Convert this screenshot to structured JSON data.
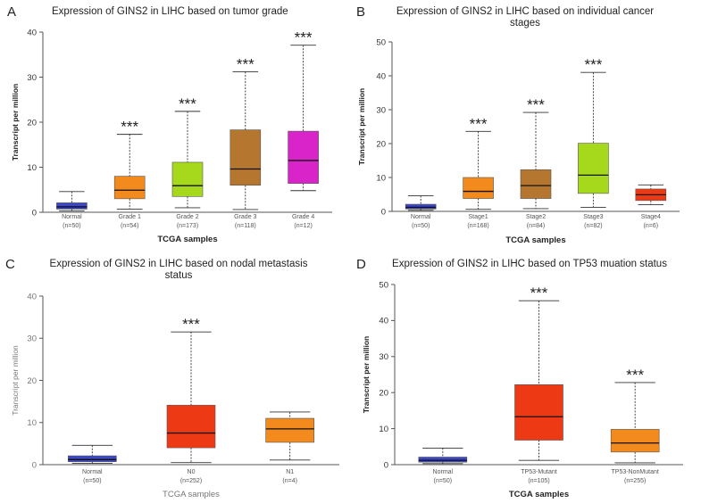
{
  "chart_data": [
    {
      "id": "A",
      "letter": "A",
      "type": "box",
      "title": [
        "Expression of GINS2 in LIHC based on tumor grade"
      ],
      "xlabel": "TCGA samples",
      "ylabel": "Transcript per million",
      "ylim": [
        0,
        40
      ],
      "yticks": [
        0,
        10,
        20,
        30,
        40
      ],
      "style": "bold",
      "categories": [
        {
          "label": "Normal",
          "n": "(n=50)",
          "color": "#3b46c9",
          "whisker_low": 0.3,
          "q1": 0.7,
          "median": 1.2,
          "q3": 2.1,
          "whisker_high": 4.6,
          "sig": ""
        },
        {
          "label": "Grade 1",
          "n": "(n=54)",
          "color": "#f28a1e",
          "whisker_low": 0.7,
          "q1": 3.0,
          "median": 4.9,
          "q3": 8.0,
          "whisker_high": 17.3,
          "sig": "***"
        },
        {
          "label": "Grade 2",
          "n": "(n=173)",
          "color": "#a6d81c",
          "whisker_low": 1.0,
          "q1": 3.5,
          "median": 5.9,
          "q3": 11.1,
          "whisker_high": 22.4,
          "sig": "***"
        },
        {
          "label": "Grade 3",
          "n": "(n=118)",
          "color": "#b5762f",
          "whisker_low": 0.6,
          "q1": 6.0,
          "median": 9.6,
          "q3": 18.3,
          "whisker_high": 31.2,
          "sig": "***"
        },
        {
          "label": "Grade 4",
          "n": "(n=12)",
          "color": "#d824c8",
          "whisker_low": 4.8,
          "q1": 6.4,
          "median": 11.5,
          "q3": 18.0,
          "whisker_high": 37.1,
          "sig": "***"
        }
      ]
    },
    {
      "id": "B",
      "letter": "B",
      "type": "box",
      "title": [
        "Expression of GINS2 in LIHC based on individual cancer",
        "stages"
      ],
      "xlabel": "TCGA samples",
      "ylabel": "Transcript per million",
      "ylim": [
        0,
        50
      ],
      "yticks": [
        0,
        10,
        20,
        30,
        40,
        50
      ],
      "style": "bold",
      "categories": [
        {
          "label": "Normal",
          "n": "(n=50)",
          "color": "#3b46c9",
          "whisker_low": 0.3,
          "q1": 0.7,
          "median": 1.2,
          "q3": 2.1,
          "whisker_high": 4.6,
          "sig": ""
        },
        {
          "label": "Stage1",
          "n": "(n=168)",
          "color": "#f28a1e",
          "whisker_low": 0.6,
          "q1": 3.8,
          "median": 5.9,
          "q3": 10.0,
          "whisker_high": 23.6,
          "sig": "***"
        },
        {
          "label": "Stage2",
          "n": "(n=84)",
          "color": "#b5762f",
          "whisker_low": 0.8,
          "q1": 3.8,
          "median": 7.6,
          "q3": 12.3,
          "whisker_high": 29.2,
          "sig": "***"
        },
        {
          "label": "Stage3",
          "n": "(n=82)",
          "color": "#a6d81c",
          "whisker_low": 1.2,
          "q1": 5.3,
          "median": 10.7,
          "q3": 20.1,
          "whisker_high": 41.0,
          "sig": "***"
        },
        {
          "label": "Stage4",
          "n": "(n=6)",
          "color": "#ee3a14",
          "whisker_low": 2.0,
          "q1": 3.2,
          "median": 4.9,
          "q3": 6.6,
          "whisker_high": 7.8,
          "sig": ""
        }
      ]
    },
    {
      "id": "C",
      "letter": "C",
      "type": "box",
      "title": [
        "Expression of GINS2 in LIHC based on nodal metastasis",
        "status"
      ],
      "xlabel": "TCGA samples",
      "ylabel": "Transcript per million",
      "ylim": [
        0,
        40
      ],
      "yticks": [
        0,
        10,
        20,
        30,
        40
      ],
      "style": "light",
      "categories": [
        {
          "label": "Normal",
          "n": "(n=50)",
          "color": "#3b46c9",
          "whisker_low": 0.3,
          "q1": 0.7,
          "median": 1.2,
          "q3": 2.1,
          "whisker_high": 4.6,
          "sig": ""
        },
        {
          "label": "N0",
          "n": "(n=252)",
          "color": "#ee3a14",
          "whisker_low": 0.5,
          "q1": 4.0,
          "median": 7.5,
          "q3": 14.1,
          "whisker_high": 31.5,
          "sig": "***"
        },
        {
          "label": "N1",
          "n": "(n=4)",
          "color": "#f28a1e",
          "whisker_low": 1.1,
          "q1": 5.3,
          "median": 8.5,
          "q3": 11.0,
          "whisker_high": 12.5,
          "sig": ""
        }
      ]
    },
    {
      "id": "D",
      "letter": "D",
      "type": "box",
      "title": [
        "Expression of GINS2 in LIHC based on TP53 muation status"
      ],
      "xlabel": "TCGA samples",
      "ylabel": "Transcript per million",
      "ylim": [
        0,
        50
      ],
      "yticks": [
        0,
        10,
        20,
        30,
        40,
        50
      ],
      "style": "bold",
      "categories": [
        {
          "label": "Normal",
          "n": "(n=50)",
          "color": "#3b46c9",
          "whisker_low": 0.3,
          "q1": 0.7,
          "median": 1.2,
          "q3": 2.1,
          "whisker_high": 4.6,
          "sig": ""
        },
        {
          "label": "TP53-Mutant",
          "n": "(n=105)",
          "color": "#ee3a14",
          "whisker_low": 1.2,
          "q1": 6.8,
          "median": 13.3,
          "q3": 22.2,
          "whisker_high": 45.5,
          "sig": "***"
        },
        {
          "label": "TP53-NonMutant",
          "n": "(n=255)",
          "color": "#f28a1e",
          "whisker_low": 0.5,
          "q1": 3.5,
          "median": 6.0,
          "q3": 9.8,
          "whisker_high": 22.8,
          "sig": "***"
        }
      ]
    }
  ]
}
